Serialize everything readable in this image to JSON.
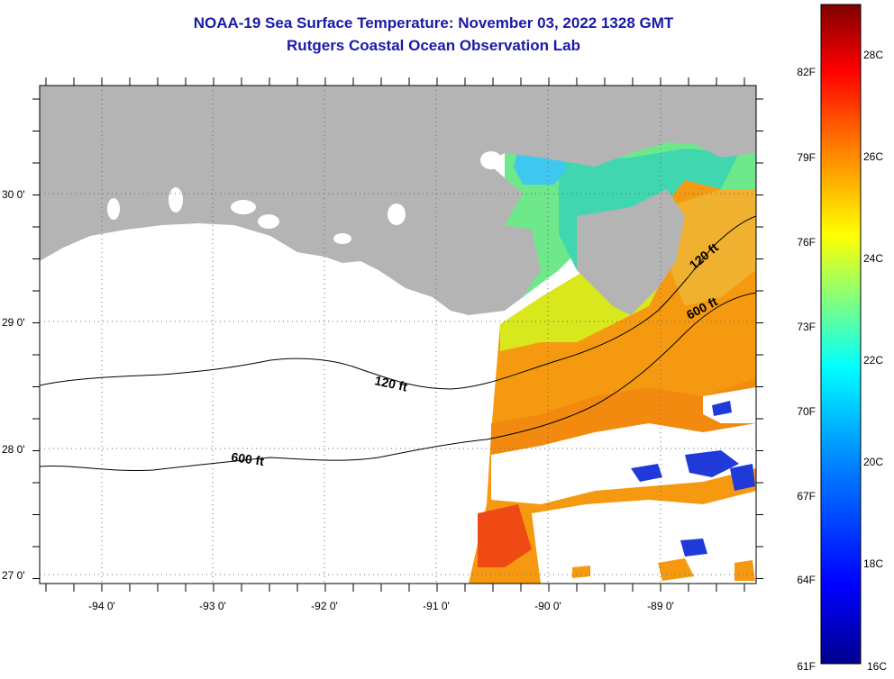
{
  "title": {
    "line1": "NOAA-19 Sea Surface Temperature:  November 03, 2022 1328 GMT",
    "line2": "Rutgers Coastal Ocean Observation Lab"
  },
  "axes": {
    "lon_labels": [
      "-94 0'",
      "-93 0'",
      "-92 0'",
      "-91 0'",
      "-90 0'",
      "-89 0'"
    ],
    "lat_labels": [
      "30 0'",
      "29 0'",
      "28 0'",
      "27 0'"
    ],
    "lon_values": [
      -94,
      -93,
      -92,
      -91,
      -90,
      -89
    ],
    "lat_values": [
      30,
      29,
      28,
      27
    ]
  },
  "contours": {
    "label_120": "120 ft",
    "label_600": "600 ft"
  },
  "colorbar": {
    "fahrenheit_labels": [
      "82F",
      "79F",
      "76F",
      "73F",
      "70F",
      "67F",
      "64F",
      "61F"
    ],
    "celsius_labels": [
      "28C",
      "26C",
      "24C",
      "22C",
      "20C",
      "18C",
      "16C"
    ],
    "min_c": 16,
    "max_c": 29,
    "colors": [
      "#00008f",
      "#0000ff",
      "#0080ff",
      "#00ffff",
      "#80ff80",
      "#ffff00",
      "#ff8000",
      "#ff0000",
      "#800000"
    ]
  },
  "colors": {
    "land": "#b4b4b4",
    "title": "#1a1aa6"
  }
}
